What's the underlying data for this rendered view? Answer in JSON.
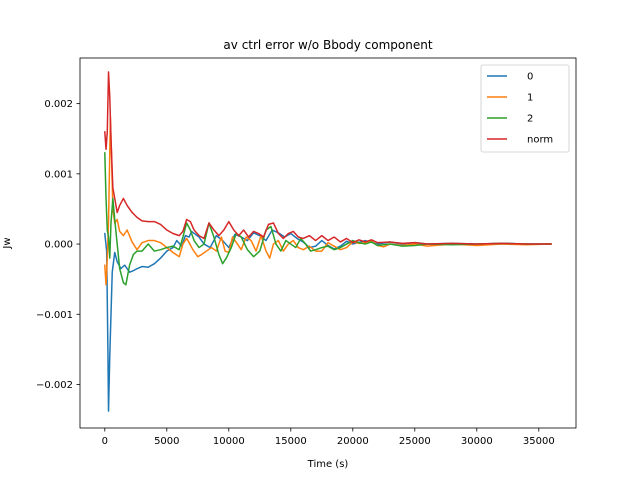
{
  "chart_data": {
    "type": "line",
    "title": "av ctrl error w/o Bbody component",
    "xlabel": "Time (s)",
    "ylabel": "Jw",
    "xlim": [
      -2000,
      38000
    ],
    "ylim": [
      -0.00262,
      0.00265
    ],
    "xticks": [
      0,
      5000,
      10000,
      15000,
      20000,
      25000,
      30000,
      35000
    ],
    "xtick_labels": [
      "0",
      "5000",
      "10000",
      "15000",
      "20000",
      "25000",
      "30000",
      "35000"
    ],
    "yticks": [
      -0.002,
      -0.001,
      0.0,
      0.001,
      0.002
    ],
    "ytick_labels": [
      "−0.002",
      "−0.001",
      "0.000",
      "0.001",
      "0.002"
    ],
    "grid": false,
    "legend_position": "top-right",
    "series": [
      {
        "name": "0",
        "color": "#1f77b4",
        "x": [
          0,
          150,
          250,
          300,
          400,
          600,
          800,
          1000,
          1300,
          1600,
          2000,
          2300,
          2600,
          3000,
          3500,
          4000,
          4500,
          5000,
          5500,
          5800,
          6200,
          6500,
          6800,
          7000,
          7300,
          7600,
          8000,
          8500,
          9000,
          9500,
          10000,
          10500,
          11000,
          11500,
          12000,
          12500,
          13000,
          13500,
          14000,
          14500,
          15000,
          15500,
          16000,
          16500,
          17000,
          17500,
          18000,
          18500,
          19000,
          19500,
          20000,
          21000,
          22000,
          23000,
          24000,
          25000,
          26000,
          28000,
          30000,
          32000,
          34000,
          36000
        ],
        "y": [
          0.00015,
          -0.0001,
          -0.0015,
          -0.00238,
          -0.0016,
          -0.0004,
          -0.00012,
          -0.00025,
          -0.00035,
          -0.0003,
          -0.0004,
          -0.00038,
          -0.00035,
          -0.00032,
          -0.00033,
          -0.00028,
          -0.0002,
          -0.0001,
          -5e-05,
          5e-05,
          -3e-05,
          0.00012,
          0.0001,
          0.00018,
          0.00014,
          0.0001,
          0.0,
          -5e-05,
          0.00012,
          5e-05,
          -5e-05,
          0.00014,
          0.0001,
          5e-05,
          0.00016,
          0.00012,
          5e-05,
          0.0002,
          0.00016,
          0.0001,
          0.00015,
          8e-05,
          3e-05,
          -5e-05,
          -3e-05,
          5e-05,
          -2e-05,
          -7e-05,
          -3e-05,
          4e-05,
          0.0,
          5e-05,
          0.0,
          3e-05,
          0.0,
          2e-05,
          0.0,
          1e-05,
          0.0,
          1e-05,
          0.0,
          0.0
        ]
      },
      {
        "name": "1",
        "color": "#ff7f0e",
        "x": [
          0,
          100,
          200,
          300,
          450,
          550,
          650,
          800,
          1000,
          1200,
          1500,
          1800,
          2200,
          2600,
          3000,
          3500,
          4000,
          4500,
          5000,
          5500,
          6000,
          6300,
          6600,
          6800,
          7100,
          7500,
          7800,
          8200,
          8600,
          9000,
          9400,
          9700,
          10000,
          10300,
          10700,
          11000,
          11400,
          11800,
          12200,
          12600,
          13000,
          13300,
          13600,
          14000,
          14400,
          14800,
          15200,
          15600,
          16000,
          16500,
          17000,
          17500,
          18000,
          18500,
          19000,
          19500,
          20000,
          20500,
          21000,
          21500,
          22000,
          22500,
          23000,
          24000,
          25000,
          26000,
          28000,
          30000,
          32000,
          34000,
          36000
        ],
        "y": [
          -0.0003,
          -0.00058,
          -0.0002,
          0.0003,
          0.0018,
          0.0012,
          0.0005,
          0.0003,
          0.00035,
          0.00018,
          0.00012,
          0.0002,
          3e-05,
          -8e-05,
          2e-05,
          5e-05,
          5e-05,
          2e-05,
          -5e-05,
          -0.00012,
          -0.00018,
          0.0,
          8e-05,
          2e-05,
          -8e-05,
          -0.00018,
          -0.00015,
          -0.0001,
          -5e-05,
          -0.0001,
          0.0001,
          -0.0001,
          -0.00012,
          0.0001,
          0.0,
          -8e-05,
          0.0001,
          5e-05,
          -0.0001,
          0.00012,
          -0.0001,
          -0.0002,
          0.0,
          5e-05,
          -0.0001,
          0.0,
          5e-05,
          -5e-05,
          -8e-05,
          -3e-05,
          -0.0001,
          -0.0001,
          2e-05,
          -3e-05,
          -8e-05,
          -5e-05,
          3e-05,
          1e-05,
          2e-05,
          4e-05,
          -2e-05,
          -4e-05,
          0.0,
          -2e-05,
          0.0,
          -3e-05,
          0.0,
          -2e-05,
          0.0,
          -1e-05,
          0.0
        ]
      },
      {
        "name": "2",
        "color": "#2ca02c",
        "x": [
          0,
          100,
          200,
          300,
          400,
          500,
          650,
          800,
          1000,
          1200,
          1500,
          1700,
          2000,
          2300,
          2600,
          3000,
          3500,
          4000,
          4500,
          5000,
          5500,
          6000,
          6300,
          6600,
          6900,
          7200,
          7600,
          8000,
          8400,
          8800,
          9200,
          9500,
          9800,
          10200,
          10600,
          11000,
          11500,
          12000,
          12500,
          13000,
          13400,
          13800,
          14200,
          14600,
          15000,
          15400,
          15800,
          16200,
          16600,
          17000,
          17500,
          18000,
          18500,
          19000,
          19500,
          20000,
          20500,
          21000,
          21500,
          22000,
          23000,
          24000,
          25000,
          26000,
          28000,
          30000,
          32000,
          34000,
          36000
        ],
        "y": [
          0.0013,
          0.00065,
          0.0002,
          0.0001,
          -0.0002,
          0.0003,
          0.00065,
          0.00035,
          0.0,
          -0.00035,
          -0.00055,
          -0.00058,
          -0.0003,
          -0.00015,
          -0.0001,
          -0.0001,
          0.0,
          -0.0001,
          -8e-05,
          -5e-05,
          -3e-05,
          -8e-05,
          0.0001,
          0.0003,
          0.0002,
          5e-05,
          -5e-05,
          0.0,
          0.0003,
          0.0001,
          -0.00015,
          -0.00028,
          -0.0002,
          -5e-05,
          0.00015,
          0.0001,
          -8e-05,
          -0.00018,
          -0.0001,
          0.0002,
          0.00025,
          0.0,
          -0.0001,
          5e-05,
          0.0,
          -5e-05,
          8e-05,
          0.0,
          -0.0001,
          -8e-05,
          -5e-05,
          -3e-05,
          -8e-05,
          -5e-05,
          0.0,
          5e-05,
          2e-05,
          0.0,
          3e-05,
          -2e-05,
          0.0,
          -3e-05,
          -2e-05,
          0.0,
          -1e-05,
          0.0,
          1e-05,
          0.0,
          0.0
        ]
      },
      {
        "name": "norm",
        "color": "#d62728",
        "x": [
          0,
          100,
          200,
          300,
          400,
          500,
          650,
          800,
          1000,
          1200,
          1500,
          1800,
          2200,
          2600,
          3000,
          3500,
          4000,
          4500,
          5000,
          5500,
          6000,
          6300,
          6600,
          6900,
          7200,
          7600,
          8000,
          8400,
          8800,
          9200,
          9600,
          10000,
          10400,
          10800,
          11200,
          11600,
          12000,
          12400,
          12800,
          13200,
          13600,
          14000,
          14400,
          14800,
          15200,
          15600,
          16000,
          16500,
          17000,
          17500,
          18000,
          18500,
          19000,
          19500,
          20000,
          20500,
          21000,
          21500,
          22000,
          23000,
          24000,
          25000,
          26000,
          28000,
          30000,
          32000,
          34000,
          36000
        ],
        "y": [
          0.0016,
          0.00135,
          0.0016,
          0.00245,
          0.0021,
          0.0015,
          0.0008,
          0.00065,
          0.00045,
          0.00055,
          0.00065,
          0.00055,
          0.00045,
          0.00038,
          0.00033,
          0.00032,
          0.00032,
          0.00028,
          0.0002,
          0.00015,
          0.00012,
          0.00018,
          0.00035,
          0.00032,
          0.0002,
          0.00012,
          8e-05,
          0.0003,
          0.0002,
          0.00012,
          0.0002,
          0.00032,
          0.0002,
          0.00012,
          0.0002,
          0.0001,
          0.00018,
          0.00015,
          0.0001,
          0.00028,
          0.0003,
          0.00015,
          8e-05,
          0.00015,
          0.00018,
          0.0001,
          8e-05,
          0.00012,
          5e-05,
          0.00012,
          5e-05,
          0.0001,
          3e-05,
          8e-05,
          2e-05,
          6e-05,
          3e-05,
          6e-05,
          2e-05,
          3e-05,
          1e-05,
          2e-05,
          0.0,
          1e-05,
          0.0,
          1e-05,
          0.0,
          0.0
        ]
      }
    ]
  }
}
